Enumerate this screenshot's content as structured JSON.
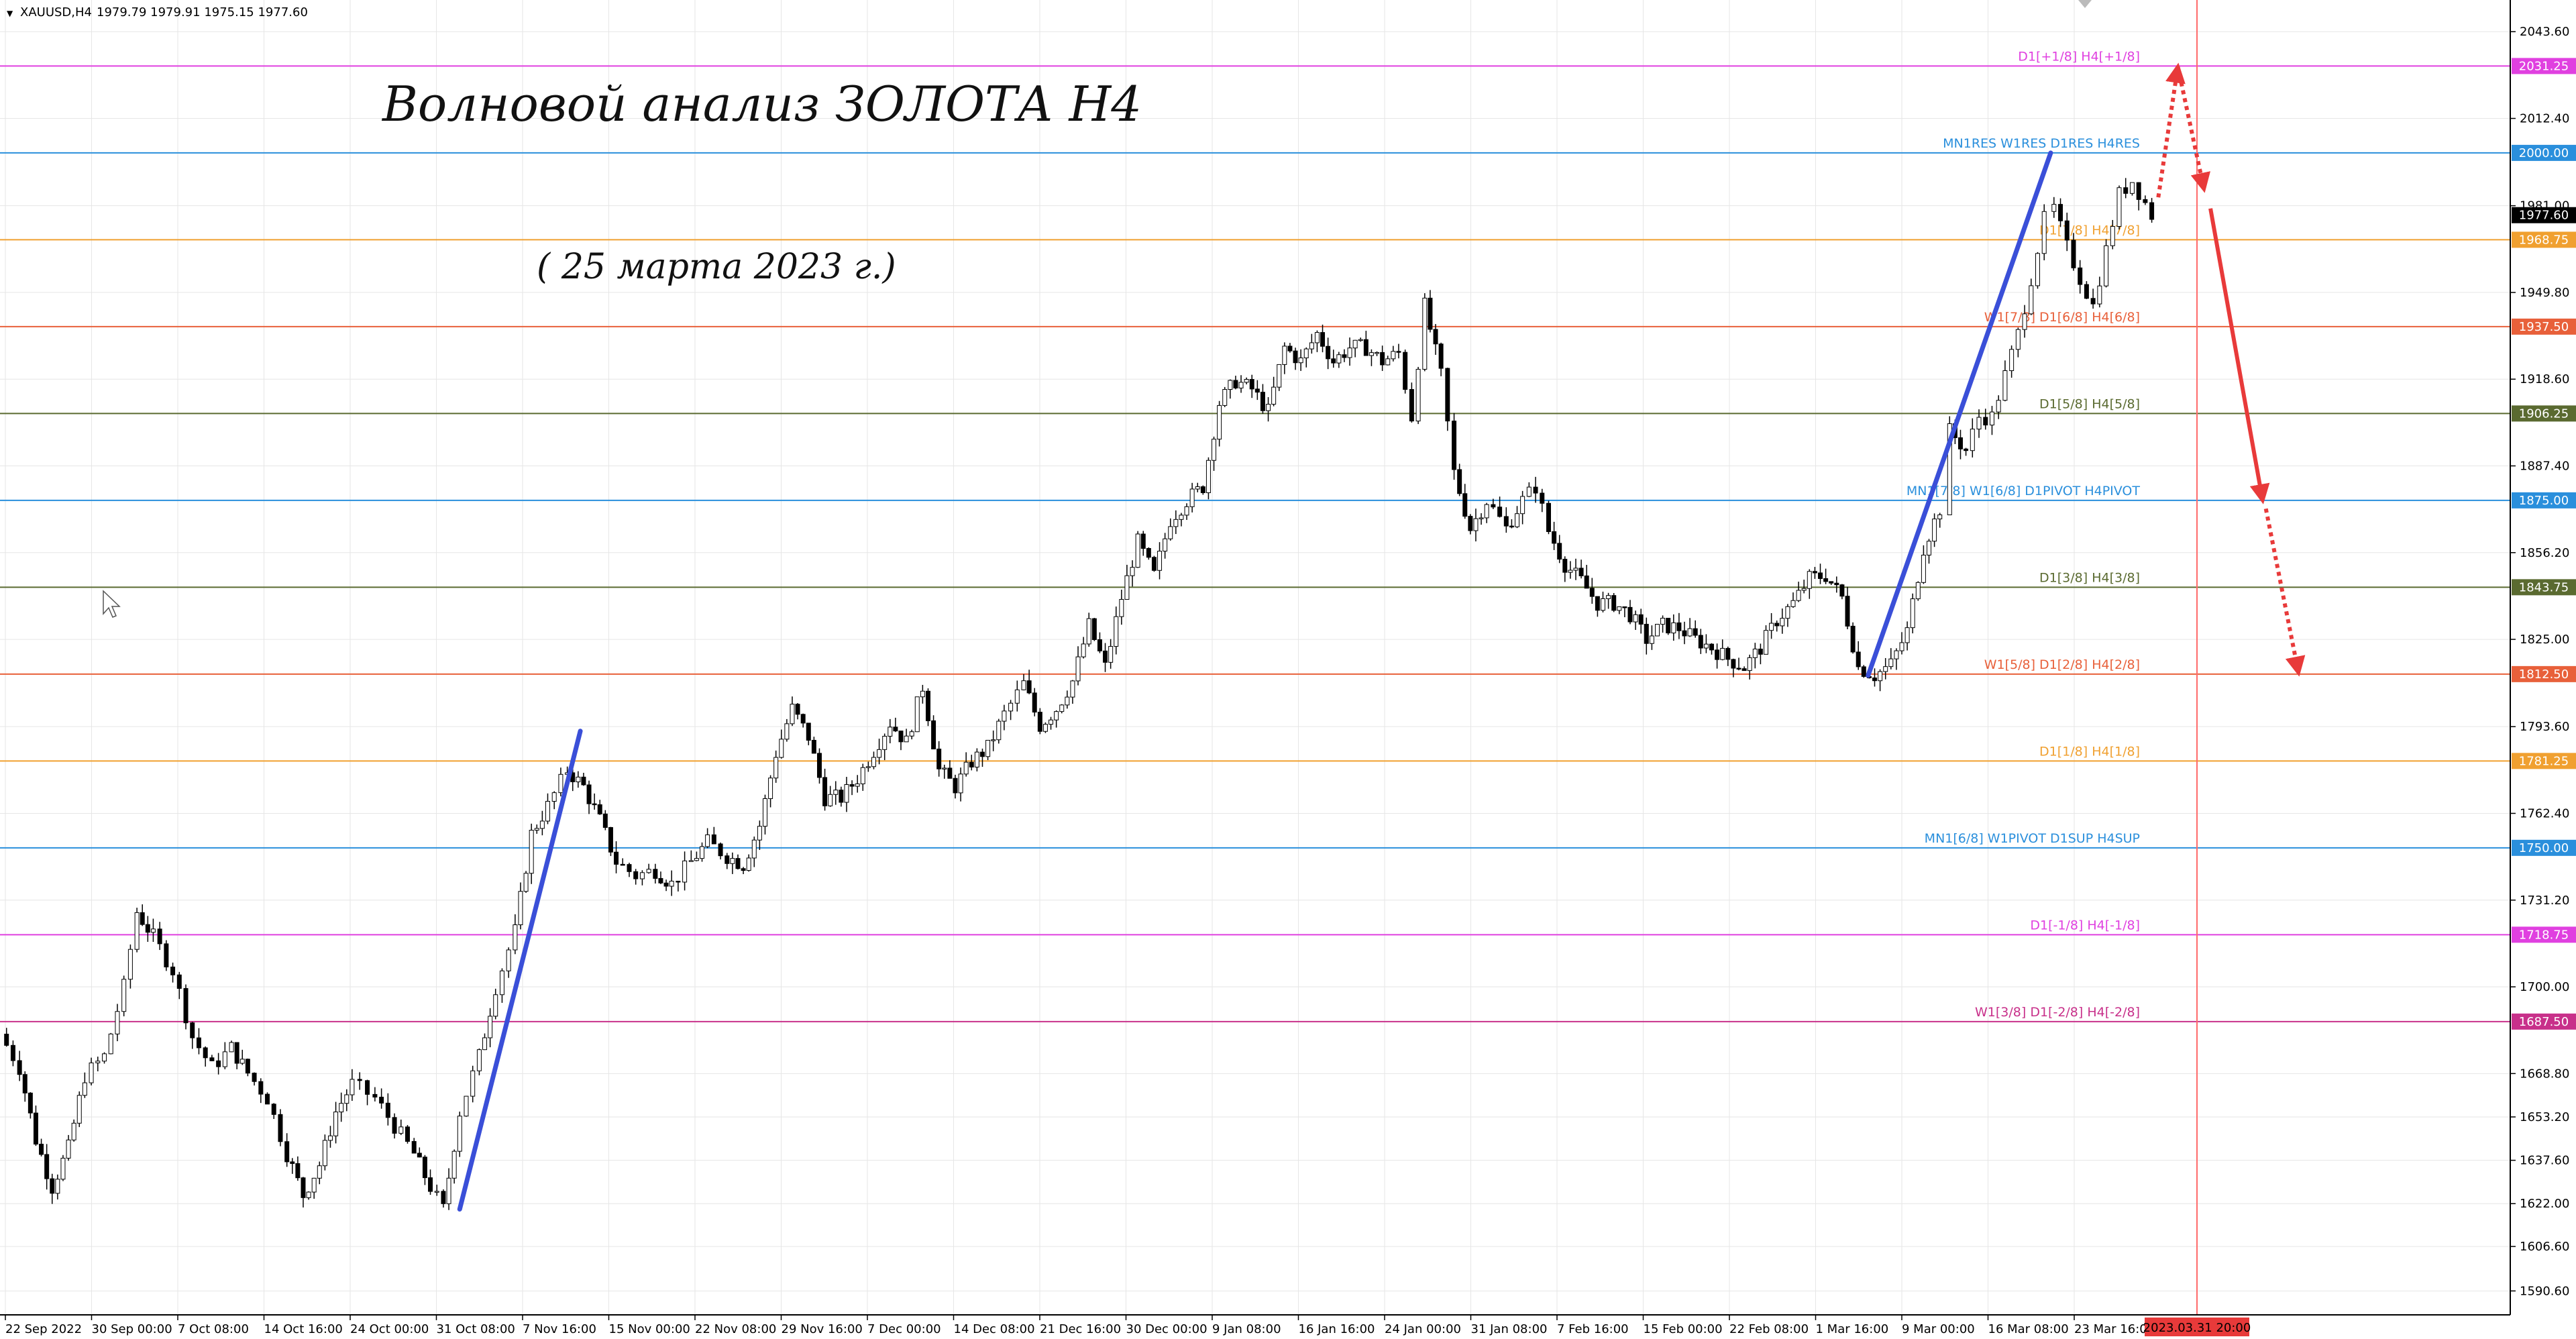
{
  "header": {
    "menu_glyph": "▼",
    "symbol": "XAUUSD,H4",
    "ohlc": "1979.79 1979.91 1975.15 1977.60"
  },
  "title": "Волновой анализ ЗОЛОТА H4",
  "subtitle": "( 25 марта 2023 г.)",
  "colors": {
    "background": "#ffffff",
    "grid": "#e6e6e6",
    "candle": "#000000",
    "wave_arrow": "#3a4fd8",
    "forecast_arrow": "#e83a3a",
    "date_marker": "#ff6b6b"
  },
  "chart_data": {
    "type": "candlestick",
    "symbol": "XAUUSD",
    "timeframe": "H4",
    "ylim": [
      1582.0,
      2055.0
    ],
    "y_ticks": [
      2043.6,
      2012.4,
      1981.0,
      1949.8,
      1918.6,
      1887.4,
      1856.2,
      1825.0,
      1793.6,
      1762.4,
      1731.2,
      1700.0,
      1668.8,
      1653.2,
      1637.6,
      1622.0,
      1606.6,
      1590.6
    ],
    "x_labels": [
      "22 Sep 2022",
      "30 Sep 00:00",
      "7 Oct 08:00",
      "14 Oct 16:00",
      "24 Oct 00:00",
      "31 Oct 08:00",
      "7 Nov 16:00",
      "15 Nov 00:00",
      "22 Nov 08:00",
      "29 Nov 16:00",
      "7 Dec 00:00",
      "14 Dec 08:00",
      "21 Dec 16:00",
      "30 Dec 00:00",
      "9 Jan 08:00",
      "16 Jan 16:00",
      "24 Jan 00:00",
      "31 Jan 08:00",
      "7 Feb 16:00",
      "15 Feb 00:00",
      "22 Feb 08:00",
      "1 Mar 16:00",
      "9 Mar 00:00",
      "16 Mar 08:00",
      "23 Mar 16:00"
    ],
    "current_price": 1977.6,
    "current_price_label": "1977.60",
    "future_date_label": "2023.03.31 20:00",
    "levels": [
      {
        "price": 2031.25,
        "tag": "2031.25",
        "label": "D1[+1/8] H4[+1/8]",
        "color": "#e040e0"
      },
      {
        "price": 2000.0,
        "tag": "2000.00",
        "label": "MN1RES W1RES D1RES H4RES",
        "color": "#2a8fdc"
      },
      {
        "price": 1968.75,
        "tag": "1968.75",
        "label": "D1[7/8] H4[7/8]",
        "color": "#f0a030"
      },
      {
        "price": 1937.5,
        "tag": "1937.50",
        "label": "W1[7/8] D1[6/8] H4[6/8]",
        "color": "#e8603a"
      },
      {
        "price": 1906.25,
        "tag": "1906.25",
        "label": "D1[5/8] H4[5/8]",
        "color": "#5a6a30"
      },
      {
        "price": 1875.0,
        "tag": "1875.00",
        "label": "MN1[7/8] W1[6/8] D1PIVOT H4PIVOT",
        "color": "#2a8fdc"
      },
      {
        "price": 1843.75,
        "tag": "1843.75",
        "label": "D1[3/8] H4[3/8]",
        "color": "#5a6a30"
      },
      {
        "price": 1812.5,
        "tag": "1812.50",
        "label": "W1[5/8] D1[2/8] H4[2/8]",
        "color": "#e8603a"
      },
      {
        "price": 1781.25,
        "tag": "1781.25",
        "label": "D1[1/8] H4[1/8]",
        "color": "#f0a030"
      },
      {
        "price": 1750.0,
        "tag": "1750.00",
        "label": "MN1[6/8] W1PIVOT D1SUP H4SUP",
        "color": "#2a8fdc"
      },
      {
        "price": 1718.75,
        "tag": "1718.75",
        "label": "D1[-1/8] H4[-1/8]",
        "color": "#e040e0"
      },
      {
        "price": 1687.5,
        "tag": "1687.50",
        "label": "W1[3/8] D1[-2/8] H4[-2/8]",
        "color": "#c8308a"
      }
    ],
    "price_path": [
      [
        0,
        1683
      ],
      [
        0.6,
        1671
      ],
      [
        1.1,
        1645
      ],
      [
        1.6,
        1628
      ],
      [
        2.1,
        1642
      ],
      [
        2.6,
        1668
      ],
      [
        3.2,
        1675
      ],
      [
        3.8,
        1700
      ],
      [
        4.2,
        1727
      ],
      [
        4.7,
        1718
      ],
      [
        5.3,
        1706
      ],
      [
        5.9,
        1682
      ],
      [
        6.5,
        1671
      ],
      [
        7.1,
        1678
      ],
      [
        7.6,
        1669
      ],
      [
        8.2,
        1660
      ],
      [
        8.8,
        1640
      ],
      [
        9.3,
        1625
      ],
      [
        9.8,
        1636
      ],
      [
        10.3,
        1655
      ],
      [
        10.8,
        1665
      ],
      [
        11.5,
        1660
      ],
      [
        12.1,
        1650
      ],
      [
        12.7,
        1640
      ],
      [
        13.2,
        1628
      ],
      [
        13.6,
        1620
      ],
      [
        14.1,
        1655
      ],
      [
        14.7,
        1675
      ],
      [
        15.2,
        1700
      ],
      [
        15.8,
        1720
      ],
      [
        16.3,
        1755
      ],
      [
        16.8,
        1765
      ],
      [
        17.4,
        1778
      ],
      [
        17.9,
        1772
      ],
      [
        18.4,
        1760
      ],
      [
        18.9,
        1745
      ],
      [
        19.5,
        1740
      ],
      [
        20.1,
        1742
      ],
      [
        20.6,
        1737
      ],
      [
        21.2,
        1745
      ],
      [
        21.7,
        1752
      ],
      [
        22.3,
        1747
      ],
      [
        22.8,
        1744
      ],
      [
        23.3,
        1758
      ],
      [
        23.8,
        1784
      ],
      [
        24.3,
        1800
      ],
      [
        24.8,
        1790
      ],
      [
        25.3,
        1768
      ],
      [
        25.8,
        1768
      ],
      [
        26.3,
        1775
      ],
      [
        26.8,
        1785
      ],
      [
        27.3,
        1795
      ],
      [
        27.8,
        1788
      ],
      [
        28.3,
        1808
      ],
      [
        28.8,
        1778
      ],
      [
        29.3,
        1772
      ],
      [
        29.8,
        1781
      ],
      [
        30.3,
        1786
      ],
      [
        30.8,
        1798
      ],
      [
        31.4,
        1809
      ],
      [
        31.9,
        1794
      ],
      [
        32.4,
        1800
      ],
      [
        32.9,
        1810
      ],
      [
        33.4,
        1830
      ],
      [
        33.9,
        1815
      ],
      [
        34.4,
        1840
      ],
      [
        34.9,
        1860
      ],
      [
        35.4,
        1848
      ],
      [
        35.9,
        1868
      ],
      [
        36.4,
        1875
      ],
      [
        36.9,
        1880
      ],
      [
        37.4,
        1910
      ],
      [
        37.9,
        1918
      ],
      [
        38.4,
        1915
      ],
      [
        38.9,
        1907
      ],
      [
        39.4,
        1930
      ],
      [
        39.9,
        1925
      ],
      [
        40.4,
        1935
      ],
      [
        40.9,
        1925
      ],
      [
        41.4,
        1930
      ],
      [
        41.9,
        1930
      ],
      [
        42.4,
        1925
      ],
      [
        42.9,
        1928
      ],
      [
        43.3,
        1905
      ],
      [
        43.7,
        1945
      ],
      [
        44.2,
        1920
      ],
      [
        44.6,
        1885
      ],
      [
        45.1,
        1865
      ],
      [
        45.6,
        1875
      ],
      [
        46.2,
        1865
      ],
      [
        46.7,
        1875
      ],
      [
        47.1,
        1880
      ],
      [
        47.5,
        1864
      ],
      [
        48.0,
        1852
      ],
      [
        48.5,
        1846
      ],
      [
        49.0,
        1838
      ],
      [
        49.5,
        1838
      ],
      [
        50.0,
        1834
      ],
      [
        50.5,
        1825
      ],
      [
        51.0,
        1830
      ],
      [
        51.5,
        1829
      ],
      [
        52.0,
        1825
      ],
      [
        52.5,
        1822
      ],
      [
        53.0,
        1818
      ],
      [
        53.5,
        1815
      ],
      [
        54.0,
        1822
      ],
      [
        54.5,
        1832
      ],
      [
        55.0,
        1838
      ],
      [
        55.5,
        1847
      ],
      [
        56.0,
        1848
      ],
      [
        56.5,
        1840
      ],
      [
        57.0,
        1815
      ],
      [
        57.5,
        1812
      ],
      [
        58.0,
        1816
      ],
      [
        58.5,
        1828
      ],
      [
        59.0,
        1858
      ],
      [
        59.5,
        1872
      ],
      [
        59.8,
        1900
      ],
      [
        60.3,
        1893
      ],
      [
        60.7,
        1905
      ],
      [
        61.1,
        1905
      ],
      [
        61.5,
        1920
      ],
      [
        61.9,
        1935
      ],
      [
        62.3,
        1955
      ],
      [
        62.7,
        1976
      ],
      [
        63.0,
        1980
      ],
      [
        63.4,
        1966
      ],
      [
        63.8,
        1955
      ],
      [
        64.2,
        1945
      ],
      [
        64.6,
        1965
      ],
      [
        65.0,
        1985
      ],
      [
        65.4,
        1990
      ],
      [
        65.8,
        1982
      ],
      [
        66.0,
        1977.6
      ]
    ],
    "wave_lines": [
      {
        "from": [
          14.1,
          1620
        ],
        "to": [
          17.8,
          1792
        ]
      },
      {
        "from": [
          57.3,
          1812
        ],
        "to": [
          62.9,
          2000
        ]
      }
    ],
    "forecast": [
      {
        "from": [
          66.2,
          1984
        ],
        "to": [
          66.8,
          2031
        ],
        "style": "dotted"
      },
      {
        "from": [
          66.8,
          2031
        ],
        "to": [
          67.6,
          1987
        ],
        "style": "dotted"
      },
      {
        "from": [
          67.8,
          1980
        ],
        "to": [
          69.4,
          1875
        ],
        "style": "solid"
      },
      {
        "from": [
          69.5,
          1872
        ],
        "to": [
          70.5,
          1813
        ],
        "style": "dotted"
      }
    ]
  }
}
